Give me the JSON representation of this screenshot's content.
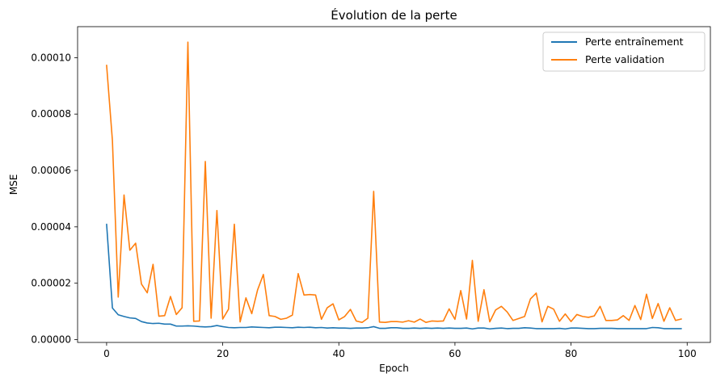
{
  "chart_data": {
    "type": "line",
    "title": "Évolution de la perte",
    "xlabel": "Epoch",
    "ylabel": "MSE",
    "xlim": [
      -5,
      104
    ],
    "ylim": [
      -1e-06,
      0.000111
    ],
    "x_ticks": [
      0,
      20,
      40,
      60,
      80,
      100
    ],
    "x_tick_labels": [
      "0",
      "20",
      "40",
      "60",
      "80",
      "100"
    ],
    "y_ticks": [
      0,
      2e-05,
      4e-05,
      6e-05,
      8e-05,
      0.0001
    ],
    "y_tick_labels": [
      "0.00000",
      "0.00002",
      "0.00004",
      "0.00006",
      "0.00008",
      "0.00010"
    ],
    "grid": false,
    "legend_position": "top-right",
    "series": [
      {
        "name": "Perte entraînement",
        "color": "#1f77b4",
        "values": [
          4.09e-05,
          1.12e-05,
          8.8e-06,
          8.2e-06,
          7.7e-06,
          7.5e-06,
          6.4e-06,
          5.9e-06,
          5.7e-06,
          5.8e-06,
          5.5e-06,
          5.5e-06,
          4.8e-06,
          4.8e-06,
          4.9e-06,
          4.8e-06,
          4.6e-06,
          4.5e-06,
          4.6e-06,
          5e-06,
          4.6e-06,
          4.3e-06,
          4.2e-06,
          4.3e-06,
          4.3e-06,
          4.5e-06,
          4.4e-06,
          4.3e-06,
          4.2e-06,
          4.4e-06,
          4.4e-06,
          4.3e-06,
          4.2e-06,
          4.4e-06,
          4.3e-06,
          4.4e-06,
          4.2e-06,
          4.3e-06,
          4.1e-06,
          4.2e-06,
          4.1e-06,
          4.1e-06,
          4e-06,
          4.1e-06,
          4.1e-06,
          4.2e-06,
          4.6e-06,
          4e-06,
          4e-06,
          4.2e-06,
          4.2e-06,
          4e-06,
          4e-06,
          4.1e-06,
          4e-06,
          4.1e-06,
          4e-06,
          4.1e-06,
          4e-06,
          4.1e-06,
          4e-06,
          4e-06,
          4.1e-06,
          3.8e-06,
          4.1e-06,
          4.1e-06,
          3.8e-06,
          4e-06,
          4.1e-06,
          3.9e-06,
          4e-06,
          4e-06,
          4.2e-06,
          4.1e-06,
          3.9e-06,
          3.9e-06,
          3.9e-06,
          3.9e-06,
          4e-06,
          3.8e-06,
          4.1e-06,
          4.1e-06,
          4e-06,
          3.9e-06,
          3.9e-06,
          4e-06,
          4e-06,
          4e-06,
          3.9e-06,
          3.9e-06,
          3.9e-06,
          3.9e-06,
          3.9e-06,
          3.9e-06,
          4.3e-06,
          4.2e-06,
          3.9e-06,
          3.9e-06,
          3.9e-06,
          3.9e-06
        ]
      },
      {
        "name": "Perte validation",
        "color": "#ff7f0e",
        "values": [
          9.73e-05,
          7.06e-05,
          1.51e-05,
          5.13e-05,
          3.17e-05,
          3.42e-05,
          1.97e-05,
          1.66e-05,
          2.67e-05,
          8.3e-06,
          8.5e-06,
          1.53e-05,
          8.9e-06,
          1.13e-05,
          0.0001055,
          6.5e-06,
          6.6e-06,
          6.32e-05,
          7.6e-06,
          4.58e-05,
          7.3e-06,
          1.08e-05,
          4.09e-05,
          6.3e-06,
          1.48e-05,
          9.2e-06,
          1.76e-05,
          2.31e-05,
          8.5e-06,
          8.2e-06,
          7.2e-06,
          7.6e-06,
          8.7e-06,
          2.34e-05,
          1.58e-05,
          1.6e-05,
          1.58e-05,
          7.2e-06,
          1.13e-05,
          1.27e-05,
          7e-06,
          8.2e-06,
          1.07e-05,
          6.6e-06,
          6.1e-06,
          7.6e-06,
          5.26e-05,
          6.2e-06,
          6.1e-06,
          6.4e-06,
          6.4e-06,
          6.2e-06,
          6.7e-06,
          6.2e-06,
          7.3e-06,
          6.1e-06,
          6.6e-06,
          6.5e-06,
          6.6e-06,
          1.09e-05,
          7.2e-06,
          1.74e-05,
          7.3e-06,
          2.81e-05,
          6.5e-06,
          1.77e-05,
          6.3e-06,
          1.05e-05,
          1.18e-05,
          9.8e-06,
          6.8e-06,
          7.5e-06,
          8.2e-06,
          1.44e-05,
          1.65e-05,
          6.3e-06,
          1.18e-05,
          1.08e-05,
          6.5e-06,
          9.1e-06,
          6.4e-06,
          8.9e-06,
          8.2e-06,
          7.9e-06,
          8.4e-06,
          1.18e-05,
          6.8e-06,
          6.8e-06,
          7e-06,
          8.5e-06,
          6.8e-06,
          1.21e-05,
          7.1e-06,
          1.61e-05,
          7.5e-06,
          1.28e-05,
          6.5e-06,
          1.13e-05,
          6.8e-06,
          7.3e-06
        ]
      }
    ]
  }
}
